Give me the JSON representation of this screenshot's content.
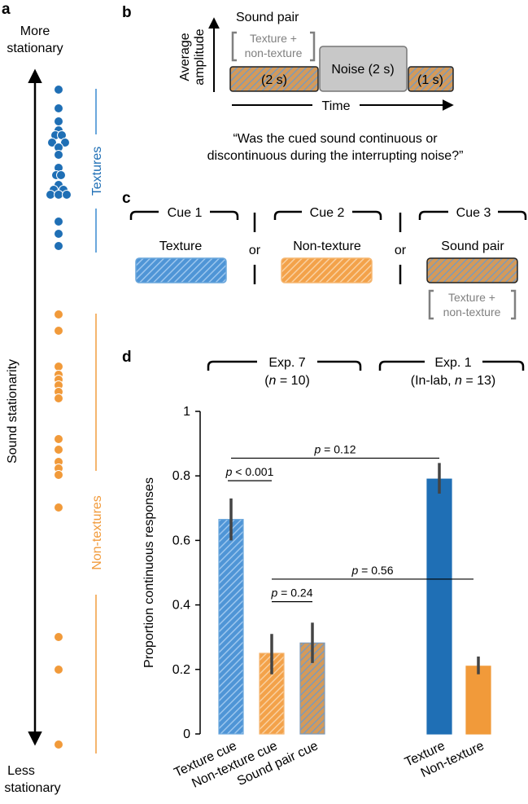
{
  "colors": {
    "texture": "#1f6fb5",
    "texture_light": "#6aa7dc",
    "nontexture": "#f19a3a",
    "nontexture_light": "#f5b56e",
    "gray_text": "#808080",
    "noise_fill": "#c8c8c8",
    "hatch_base": "#c9a27a",
    "hatch_line": "#6c8fb3"
  },
  "panels": {
    "a": "a",
    "b": "b",
    "c": "c",
    "d": "d"
  },
  "panel_a": {
    "top_label": [
      "More",
      "stationary"
    ],
    "bottom_label": [
      "Less",
      "stationary"
    ],
    "axis_label": "Sound stationarity",
    "textures_label": "Textures",
    "nontextures_label": "Non-textures",
    "texture_dot_count": 22,
    "nontexture_dot_count": 16
  },
  "panel_b": {
    "title": "Sound pair",
    "bracket_text": [
      "Texture +",
      "non-texture"
    ],
    "ylabel": [
      "Average",
      "amplitude"
    ],
    "seg1": "(2 s)",
    "noise": "Noise (2 s)",
    "seg3": "(1 s)",
    "xlabel": "Time",
    "question": [
      "“Was the cued sound continuous or",
      "discontinuous during the interrupting noise?”"
    ]
  },
  "panel_c": {
    "cue1_header": "Cue 1",
    "cue2_header": "Cue 2",
    "cue3_header": "Cue 3",
    "cue1_label": "Texture",
    "cue2_label": "Non-texture",
    "cue3_label": "Sound pair",
    "or": "or",
    "bracket_text": [
      "Texture +",
      "non-texture"
    ]
  },
  "chart_data": {
    "type": "bar",
    "ylabel": "Proportion continuous responses",
    "ylim": [
      0,
      1
    ],
    "yticks": [
      "0",
      "0.2",
      "0.4",
      "0.6",
      "0.8",
      "1"
    ],
    "groups": [
      {
        "title": "Exp. 7",
        "subtitle_pre": "(",
        "subtitle_n": "n",
        "subtitle_post": " = 10)"
      },
      {
        "title": "Exp. 1",
        "subtitle_pre": "(In-lab, ",
        "subtitle_n": "n",
        "subtitle_post": " = 13)"
      }
    ],
    "categories": [
      "Texture cue",
      "Non-texture cue",
      "Sound pair cue",
      "Texture",
      "Non-texture"
    ],
    "values": [
      0.665,
      0.25,
      0.282,
      0.79,
      0.21
    ],
    "err_low": [
      0.6,
      0.185,
      0.22,
      0.745,
      0.185
    ],
    "err_high": [
      0.73,
      0.31,
      0.345,
      0.84,
      0.24
    ],
    "comparisons": [
      {
        "label_p": "p",
        "label_rest": " < 0.001",
        "from": 0,
        "to": 1,
        "y": 0.785
      },
      {
        "label_p": "p",
        "label_rest": " = 0.24",
        "from": 1,
        "to": 2,
        "y": 0.41
      },
      {
        "label_p": "p",
        "label_rest": " = 0.12",
        "from": 0,
        "to": 3,
        "y": 0.855
      },
      {
        "label_p": "p",
        "label_rest": " = 0.56",
        "from": 1,
        "to": 3,
        "y": 0.48
      }
    ]
  }
}
